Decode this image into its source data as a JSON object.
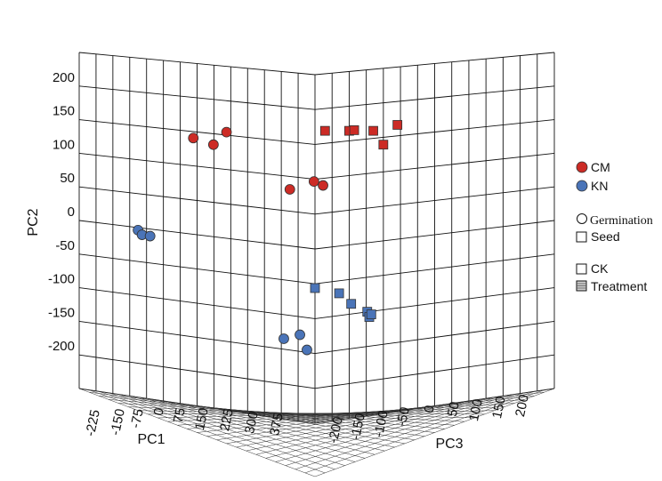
{
  "chart_data": {
    "type": "scatter",
    "title": "",
    "axes": {
      "x": {
        "label": "PC1",
        "ticks": [
          "-225",
          "-150",
          "-75",
          "0",
          "75",
          "150",
          "225",
          "300",
          "375"
        ]
      },
      "y": {
        "label": "PC2",
        "ticks": [
          "200",
          "150",
          "100",
          "50",
          "0",
          "-50",
          "-100",
          "-150",
          "-200"
        ]
      },
      "z": {
        "label": "PC3",
        "ticks": [
          "-200",
          "-150",
          "-100",
          "-50",
          "0",
          "50",
          "100",
          "150",
          "200"
        ]
      }
    },
    "legend": {
      "placement": "right",
      "cultivar": [
        {
          "label": "CM",
          "color": "#cc2b25"
        },
        {
          "label": "KN",
          "color": "#4a74b8"
        }
      ],
      "tissue": [
        {
          "label": "Germination",
          "marker": "circle"
        },
        {
          "label": "Seed",
          "marker": "square"
        }
      ],
      "condition": [
        {
          "label": "CK",
          "fill": "plain"
        },
        {
          "label": "Treatment",
          "fill": "hatched"
        }
      ]
    },
    "series": [
      {
        "cultivar": "CM",
        "tissue": "Germination",
        "color": "#cc2b25",
        "marker": "circle",
        "points": [
          [
            -121,
            128
          ],
          [
            -101,
            118
          ],
          [
            -88,
            137
          ],
          [
            -25,
            50
          ],
          [
            -1,
            62
          ],
          [
            8,
            56
          ]
        ]
      },
      {
        "cultivar": "CM",
        "tissue": "Seed",
        "color": "#cc2b25",
        "marker": "square",
        "points": [
          [
            10,
            139
          ],
          [
            34,
            139
          ],
          [
            39,
            140
          ],
          [
            58,
            139
          ],
          [
            68,
            118
          ],
          [
            82,
            148
          ]
        ]
      },
      {
        "cultivar": "KN",
        "tissue": "Germination",
        "color": "#4a74b8",
        "marker": "circle",
        "points": [
          [
            -176,
            -12
          ],
          [
            -172,
            -19
          ],
          [
            -164,
            -21
          ],
          [
            -31,
            -177
          ],
          [
            -15,
            -171
          ],
          [
            -8,
            -194
          ]
        ]
      },
      {
        "cultivar": "KN",
        "tissue": "Seed",
        "color": "#4a74b8",
        "marker": "square",
        "points": [
          [
            0,
            -100
          ],
          [
            24,
            -108
          ],
          [
            36,
            -124
          ],
          [
            52,
            -136
          ],
          [
            54,
            -144
          ],
          [
            56,
            -140
          ]
        ]
      }
    ]
  }
}
